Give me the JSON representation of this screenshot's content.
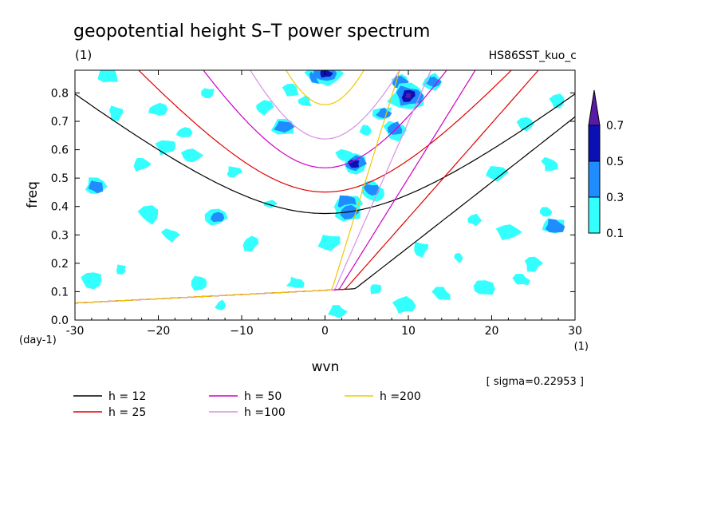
{
  "chart_data": {
    "type": "contour",
    "title": "geopotential height S–T power spectrum",
    "subtitle_left": "(1)",
    "subtitle_right": "HS86SST_kuo_c",
    "xlabel": "wvn",
    "ylabel": "freq",
    "x_unit_label": "(1)",
    "y_unit_label": "(day-1)",
    "xlim": [
      -30,
      30
    ],
    "ylim": [
      0,
      0.88
    ],
    "x_ticks": [
      -30,
      -20,
      -10,
      0,
      10,
      20,
      30
    ],
    "x_tick_labels": [
      "-30",
      "−20",
      "−10",
      "0",
      "10",
      "20",
      "30"
    ],
    "y_ticks": [
      0.0,
      0.1,
      0.2,
      0.3,
      0.4,
      0.5,
      0.6,
      0.7,
      0.8
    ],
    "y_tick_labels": [
      "0.0",
      "0.1",
      "0.2",
      "0.3",
      "0.4",
      "0.5",
      "0.6",
      "0.7",
      "0.8"
    ],
    "sigma_note": "[ sigma=0.22953 ]",
    "colorbar": {
      "levels": [
        0.1,
        0.3,
        0.5,
        0.7
      ],
      "labels": [
        "0.1",
        "0.3",
        "0.5",
        "0.7"
      ],
      "colors": [
        "#33ffff",
        "#1f8cff",
        "#0a10b4",
        "#5a1aa8"
      ]
    },
    "contour_blobs": [
      {
        "x": -27.5,
        "y": 0.47,
        "level": 1
      },
      {
        "x": -25,
        "y": 0.73,
        "level": 0
      },
      {
        "x": -22,
        "y": 0.55,
        "level": 0
      },
      {
        "x": -19,
        "y": 0.61,
        "level": 0
      },
      {
        "x": -17,
        "y": 0.66,
        "level": 0
      },
      {
        "x": -16,
        "y": 0.58,
        "level": 0
      },
      {
        "x": -13,
        "y": 0.36,
        "level": 1
      },
      {
        "x": -11,
        "y": 0.52,
        "level": 0
      },
      {
        "x": -9,
        "y": 0.27,
        "level": 0
      },
      {
        "x": -7.5,
        "y": 0.75,
        "level": 0
      },
      {
        "x": -5,
        "y": 0.68,
        "level": 1
      },
      {
        "x": -4,
        "y": 0.81,
        "level": 0
      },
      {
        "x": -2.5,
        "y": 0.77,
        "level": 0
      },
      {
        "x": -1,
        "y": 0.86,
        "level": 1
      },
      {
        "x": 0,
        "y": 0.87,
        "level": 2
      },
      {
        "x": 0.5,
        "y": 0.27,
        "level": 0
      },
      {
        "x": 2.5,
        "y": 0.58,
        "level": 0
      },
      {
        "x": 3.5,
        "y": 0.55,
        "level": 2
      },
      {
        "x": 2.5,
        "y": 0.41,
        "level": 1
      },
      {
        "x": 3,
        "y": 0.38,
        "level": 1
      },
      {
        "x": 5,
        "y": 0.67,
        "level": 0
      },
      {
        "x": 6,
        "y": 0.44,
        "level": 0
      },
      {
        "x": 5.5,
        "y": 0.46,
        "level": 1
      },
      {
        "x": 7,
        "y": 0.73,
        "level": 1
      },
      {
        "x": 8.5,
        "y": 0.67,
        "level": 1
      },
      {
        "x": 9,
        "y": 0.84,
        "level": 1
      },
      {
        "x": 10,
        "y": 0.79,
        "level": 3
      },
      {
        "x": 13,
        "y": 0.84,
        "level": 1
      },
      {
        "x": 11.5,
        "y": 0.25,
        "level": 0
      },
      {
        "x": 14,
        "y": 0.09,
        "level": 0
      },
      {
        "x": 16,
        "y": 0.22,
        "level": 0
      },
      {
        "x": 18,
        "y": 0.35,
        "level": 0
      },
      {
        "x": 19,
        "y": 0.11,
        "level": 0
      },
      {
        "x": 22,
        "y": 0.31,
        "level": 0
      },
      {
        "x": 23.5,
        "y": 0.14,
        "level": 0
      },
      {
        "x": 24,
        "y": 0.69,
        "level": 0
      },
      {
        "x": 25,
        "y": 0.2,
        "level": 0
      },
      {
        "x": 26.5,
        "y": 0.38,
        "level": 0
      },
      {
        "x": 27.5,
        "y": 0.33,
        "level": 1
      },
      {
        "x": 28,
        "y": 0.77,
        "level": 0
      },
      {
        "x": -28,
        "y": 0.14,
        "level": 0
      },
      {
        "x": -24.5,
        "y": 0.18,
        "level": 0
      },
      {
        "x": -21,
        "y": 0.37,
        "level": 0
      },
      {
        "x": -18.5,
        "y": 0.3,
        "level": 0
      },
      {
        "x": -15,
        "y": 0.13,
        "level": 0
      },
      {
        "x": -12.5,
        "y": 0.05,
        "level": 0
      },
      {
        "x": -3.5,
        "y": 0.13,
        "level": 0
      },
      {
        "x": 6,
        "y": 0.11,
        "level": 0
      },
      {
        "x": 9.5,
        "y": 0.05,
        "level": 0
      },
      {
        "x": -26,
        "y": 0.86,
        "level": 0
      },
      {
        "x": -14,
        "y": 0.8,
        "level": 0
      },
      {
        "x": 1.5,
        "y": 0.03,
        "level": 0
      },
      {
        "x": 20.5,
        "y": 0.52,
        "level": 0
      },
      {
        "x": 27,
        "y": 0.55,
        "level": 0
      },
      {
        "x": -6.5,
        "y": 0.41,
        "level": 0
      },
      {
        "x": -20,
        "y": 0.74,
        "level": 0
      }
    ],
    "dispersion_curves": [
      {
        "name": "h = 12",
        "color": "#000000",
        "equivalent_depth": 12
      },
      {
        "name": "h = 25",
        "color": "#e00000",
        "equivalent_depth": 25
      },
      {
        "name": "h = 50",
        "color": "#d000c8",
        "equivalent_depth": 50
      },
      {
        "name": "h =100",
        "color": "#d890e6",
        "equivalent_depth": 100
      },
      {
        "name": "h =200",
        "color": "#f0c800",
        "equivalent_depth": 200
      }
    ]
  }
}
